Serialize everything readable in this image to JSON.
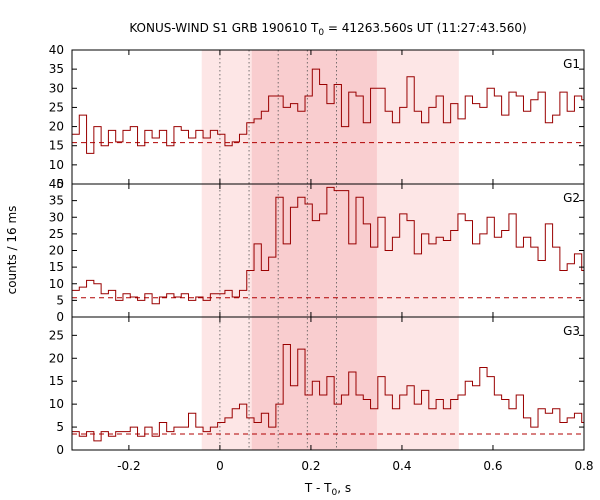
{
  "chart_data": {
    "type": "line",
    "title": {
      "main": "KONUS-WIND S1 GRB 190610 T",
      "sub": "0",
      "rest": " = 41263.560s UT (11:27:43.560)"
    },
    "xlabel": {
      "main": "T - T",
      "sub": "0",
      "rest": ", s"
    },
    "ylabel": "counts / 16 ms",
    "xlim": [
      -0.325,
      0.8
    ],
    "xticks": [
      -0.2,
      0,
      0.2,
      0.4,
      0.6,
      0.8
    ],
    "xtick_labels": [
      "-0.2",
      "0",
      "0.2",
      "0.4",
      "0.6",
      "0.8"
    ],
    "bin_width": 0.016,
    "shaded_regions": [
      {
        "range": [
          -0.04,
          0.525
        ],
        "color": "#fde6e6"
      },
      {
        "range": [
          0.07,
          0.345
        ],
        "color": "#f9cdcf"
      }
    ],
    "vlines": [
      0.0,
      0.064,
      0.128,
      0.192,
      0.256
    ],
    "line_color": "#990000",
    "background_color": "#b00000",
    "panels": [
      {
        "name": "G1",
        "ylim": [
          5,
          40
        ],
        "yticks": [
          5,
          10,
          15,
          20,
          25,
          30,
          35,
          40
        ],
        "ytick_labels": [
          "5",
          "10",
          "15",
          "20",
          "25",
          "30",
          "35",
          "40"
        ],
        "background": 15.8,
        "values": [
          18,
          23,
          13,
          20,
          15,
          19,
          16,
          19,
          20,
          15,
          19,
          17,
          19,
          15,
          20,
          19,
          17,
          19,
          17,
          19,
          18,
          15,
          16,
          18,
          21,
          22,
          24,
          28,
          28,
          25,
          26,
          24,
          28,
          35,
          31,
          26,
          31,
          20,
          29,
          28,
          21,
          30,
          30,
          24,
          21,
          25,
          33,
          24,
          21,
          25,
          28,
          21,
          26,
          22,
          28,
          26,
          25,
          30,
          28,
          23,
          29,
          28,
          24,
          27,
          29,
          21,
          23,
          29,
          24,
          28,
          27,
          22,
          20,
          25,
          27,
          22,
          24,
          20,
          25,
          22,
          21,
          22,
          25,
          19,
          22,
          25,
          24,
          24,
          20,
          20,
          18,
          20,
          22,
          21,
          18,
          19,
          22,
          21,
          16,
          19,
          22,
          15,
          17,
          20,
          20,
          16,
          19,
          20,
          17,
          15,
          23
        ]
      },
      {
        "name": "G2",
        "ylim": [
          0,
          40
        ],
        "yticks": [
          0,
          5,
          10,
          15,
          20,
          25,
          30,
          35,
          40
        ],
        "ytick_labels": [
          "0",
          "5",
          "10",
          "15",
          "20",
          "25",
          "30",
          "35",
          "40"
        ],
        "background": 5.8,
        "values": [
          8,
          9,
          11,
          10,
          7,
          8,
          5,
          7,
          6,
          5,
          7,
          4,
          6,
          7,
          6,
          7,
          5,
          6,
          5,
          7,
          7,
          8,
          6,
          8,
          14,
          22,
          14,
          18,
          36,
          22,
          33,
          36,
          34,
          29,
          31,
          39,
          38,
          38,
          22,
          36,
          28,
          21,
          30,
          20,
          24,
          31,
          29,
          19,
          25,
          22,
          24,
          23,
          26,
          31,
          29,
          22,
          25,
          30,
          24,
          26,
          31,
          21,
          24,
          21,
          17,
          28,
          21,
          14,
          16,
          19,
          14,
          7,
          11,
          20,
          30,
          11,
          18,
          11,
          13,
          20,
          20,
          14,
          10,
          9,
          6,
          11,
          8,
          9,
          6,
          4,
          5,
          6,
          4,
          5,
          7,
          5,
          4,
          6,
          7,
          5,
          6,
          8,
          5,
          7,
          6,
          5,
          5,
          5,
          6,
          5
        ]
      },
      {
        "name": "G3",
        "ylim": [
          0,
          29
        ],
        "yticks": [
          0,
          5,
          10,
          15,
          20,
          25
        ],
        "ytick_labels": [
          "0",
          "5",
          "10",
          "15",
          "20",
          "25"
        ],
        "background": 3.5,
        "values": [
          4,
          3,
          4,
          2,
          4,
          3,
          4,
          4,
          5,
          3,
          5,
          3,
          6,
          4,
          5,
          5,
          8,
          5,
          4,
          5,
          6,
          7,
          9,
          10,
          7,
          6,
          8,
          5,
          10,
          23,
          14,
          22,
          12,
          15,
          12,
          16,
          10,
          12,
          17,
          12,
          11,
          9,
          16,
          12,
          9,
          12,
          14,
          10,
          13,
          9,
          11,
          9,
          11,
          12,
          15,
          14,
          18,
          16,
          12,
          11,
          9,
          12,
          7,
          5,
          9,
          8,
          9,
          6,
          7,
          8,
          6,
          5,
          6,
          6,
          6,
          7,
          6,
          5,
          8,
          9,
          16,
          4,
          3,
          5,
          3,
          5,
          3,
          6,
          4,
          3,
          4,
          1,
          2,
          5,
          0,
          4,
          3,
          3,
          4,
          3,
          4,
          3,
          3,
          4,
          3,
          2,
          3,
          3,
          4,
          3
        ]
      }
    ]
  }
}
